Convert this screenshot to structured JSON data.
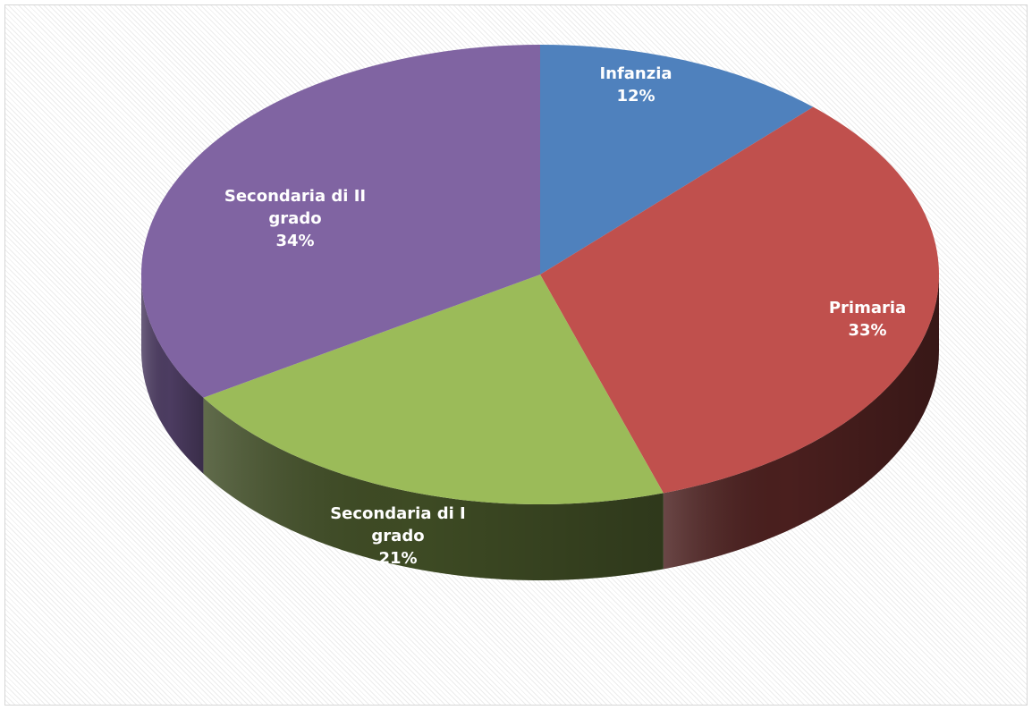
{
  "chart_data": {
    "type": "pie",
    "style": "3d",
    "categories": [
      "Infanzia",
      "Primaria",
      "Secondaria di I grado",
      "Secondaria di II grado"
    ],
    "values": [
      12,
      33,
      21,
      34
    ],
    "unit": "%",
    "colors": [
      "#4f81bd",
      "#c0504d",
      "#9bbb59",
      "#8064a2"
    ],
    "side_colors": [
      "#2f4d71",
      "#4a1f1e",
      "#3e4b24",
      "#4c3c61"
    ],
    "labels": [
      {
        "lines": [
          "Infanzia"
        ],
        "value_text": "12%"
      },
      {
        "lines": [
          "Primaria"
        ],
        "value_text": "33%"
      },
      {
        "lines": [
          "Secondaria di I",
          "grado"
        ],
        "value_text": "21%"
      },
      {
        "lines": [
          "Secondaria di II",
          "grado"
        ],
        "value_text": "34%"
      }
    ],
    "title": "",
    "legend": "none"
  }
}
